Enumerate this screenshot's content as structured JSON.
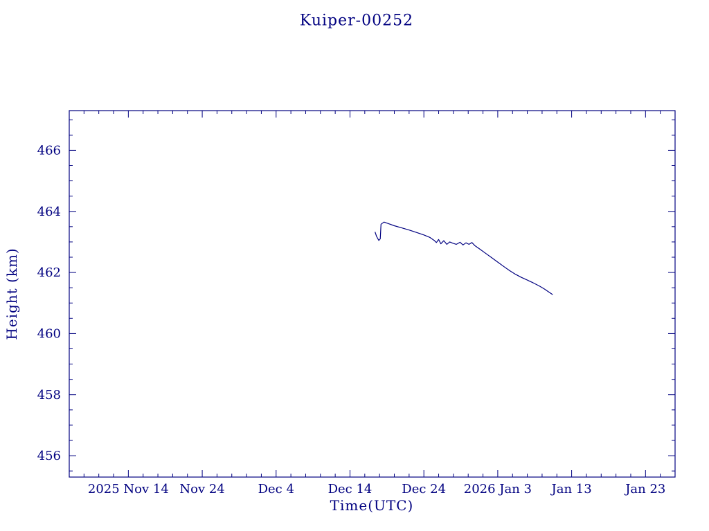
{
  "page": {
    "background": "#ffffff",
    "accent": "#000080"
  },
  "chart_data": {
    "type": "line",
    "title": "Kuiper-00252",
    "xlabel": "Time(UTC)",
    "ylabel": "Height (km)",
    "grid": false,
    "legend": false,
    "line_color": "#000080",
    "x_axis": {
      "unit": "days since 2025-11-06 00:00 UTC",
      "min": 0,
      "max": 82,
      "minor_tick_step": 2,
      "major_ticks": [
        {
          "day": 8,
          "label": "2025 Nov 14"
        },
        {
          "day": 18,
          "label": "Nov 24"
        },
        {
          "day": 28,
          "label": "Dec 4"
        },
        {
          "day": 38,
          "label": "Dec 14"
        },
        {
          "day": 48,
          "label": "Dec 24"
        },
        {
          "day": 58,
          "label": "2026 Jan 3"
        },
        {
          "day": 68,
          "label": "Jan 13"
        },
        {
          "day": 78,
          "label": "Jan 23"
        }
      ]
    },
    "y_axis": {
      "min": 455.3,
      "max": 467.3,
      "minor_tick_step": 0.5,
      "major_ticks": [
        456,
        458,
        460,
        462,
        464,
        466
      ]
    },
    "series": [
      {
        "name": "Kuiper-00252 height",
        "points": [
          [
            41.4,
            463.32
          ],
          [
            41.6,
            463.18
          ],
          [
            41.9,
            463.05
          ],
          [
            42.1,
            463.1
          ],
          [
            42.2,
            463.58
          ],
          [
            42.6,
            463.65
          ],
          [
            43.2,
            463.6
          ],
          [
            44.0,
            463.53
          ],
          [
            45.0,
            463.46
          ],
          [
            46.0,
            463.39
          ],
          [
            47.0,
            463.31
          ],
          [
            48.0,
            463.23
          ],
          [
            48.8,
            463.15
          ],
          [
            49.4,
            463.05
          ],
          [
            49.7,
            462.98
          ],
          [
            50.0,
            463.08
          ],
          [
            50.3,
            462.94
          ],
          [
            50.7,
            463.04
          ],
          [
            51.1,
            462.92
          ],
          [
            51.5,
            463.0
          ],
          [
            51.9,
            462.96
          ],
          [
            52.4,
            462.92
          ],
          [
            52.9,
            462.99
          ],
          [
            53.3,
            462.9
          ],
          [
            53.7,
            462.97
          ],
          [
            54.1,
            462.92
          ],
          [
            54.5,
            462.98
          ],
          [
            54.9,
            462.88
          ],
          [
            55.6,
            462.76
          ],
          [
            56.4,
            462.62
          ],
          [
            57.2,
            462.48
          ],
          [
            58.0,
            462.34
          ],
          [
            58.8,
            462.2
          ],
          [
            59.6,
            462.06
          ],
          [
            60.4,
            461.94
          ],
          [
            61.2,
            461.84
          ],
          [
            62.0,
            461.75
          ],
          [
            62.8,
            461.66
          ],
          [
            63.6,
            461.56
          ],
          [
            64.3,
            461.46
          ],
          [
            64.9,
            461.36
          ],
          [
            65.4,
            461.28
          ]
        ]
      }
    ]
  }
}
